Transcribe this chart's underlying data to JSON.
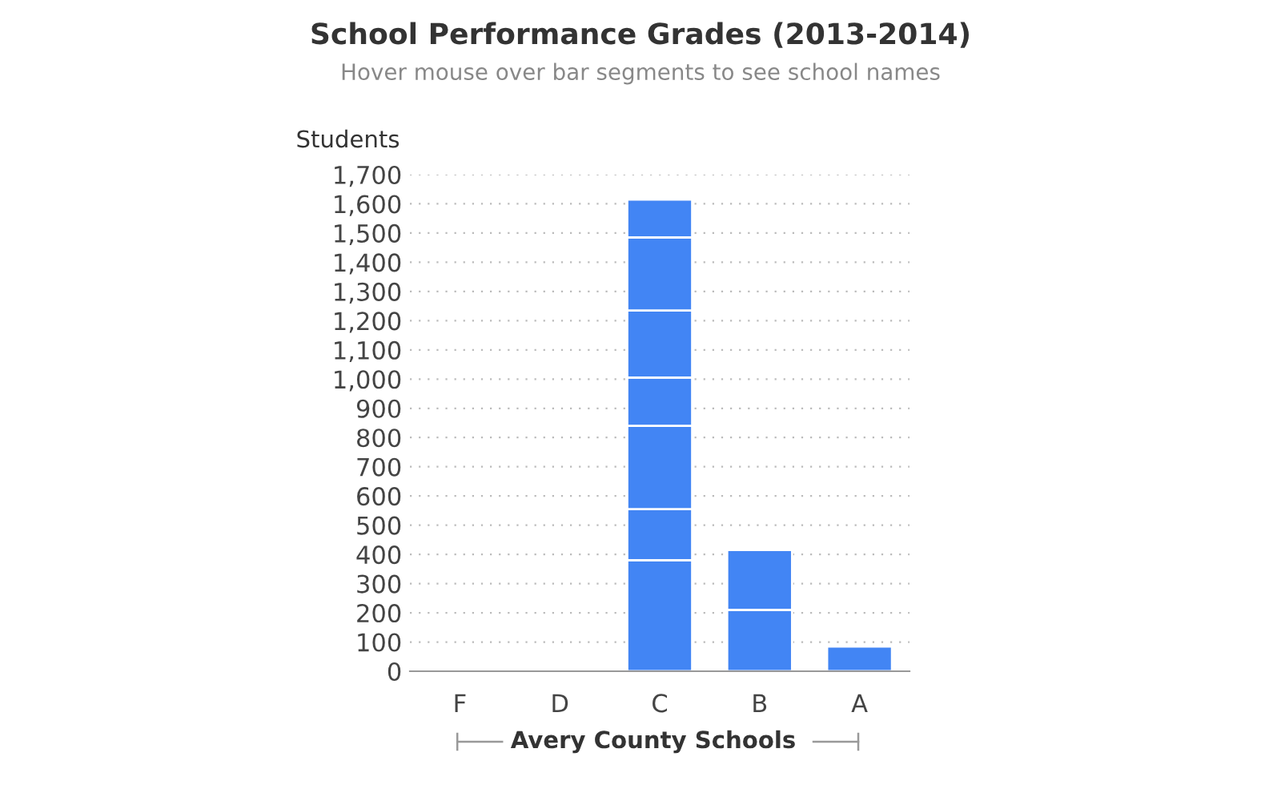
{
  "chart_data": {
    "type": "bar",
    "title": "School Performance Grades (2013-2014)",
    "subtitle": "Hover mouse over bar segments to see school names",
    "xlabel": "Avery County Schools",
    "ylabel": "Students",
    "categories": [
      "F",
      "D",
      "C",
      "B",
      "A"
    ],
    "stacked": true,
    "series": [
      {
        "color": "#4285f4",
        "values": [
          null,
          null,
          380,
          210,
          85
        ]
      },
      {
        "color": "#4285f4",
        "values": [
          null,
          null,
          175,
          205,
          null
        ]
      },
      {
        "color": "#4285f4",
        "values": [
          null,
          null,
          285,
          null,
          null
        ]
      },
      {
        "color": "#4285f4",
        "values": [
          null,
          null,
          165,
          null,
          null
        ]
      },
      {
        "color": "#4285f4",
        "values": [
          null,
          null,
          230,
          null,
          null
        ]
      },
      {
        "color": "#4285f4",
        "values": [
          null,
          null,
          250,
          null,
          null
        ]
      },
      {
        "color": "#4285f4",
        "values": [
          null,
          null,
          130,
          null,
          null
        ]
      }
    ],
    "ylim": [
      0,
      1700
    ],
    "yticks": [
      0,
      {
        "value": 100,
        "label": "100"
      },
      200,
      300,
      400,
      500,
      600,
      700,
      800,
      900,
      {
        "value": 1000,
        "label": "1,000"
      },
      {
        "value": 1100,
        "label": "1,100"
      },
      {
        "value": 1200,
        "label": "1,200"
      },
      {
        "value": 1300,
        "label": "1,300"
      },
      {
        "value": 1400,
        "label": "1,400"
      },
      {
        "value": 1500,
        "label": "1,500"
      },
      {
        "value": 1600,
        "label": "1,600"
      },
      {
        "value": 1700,
        "label": "1,700"
      }
    ],
    "grid": "y"
  }
}
